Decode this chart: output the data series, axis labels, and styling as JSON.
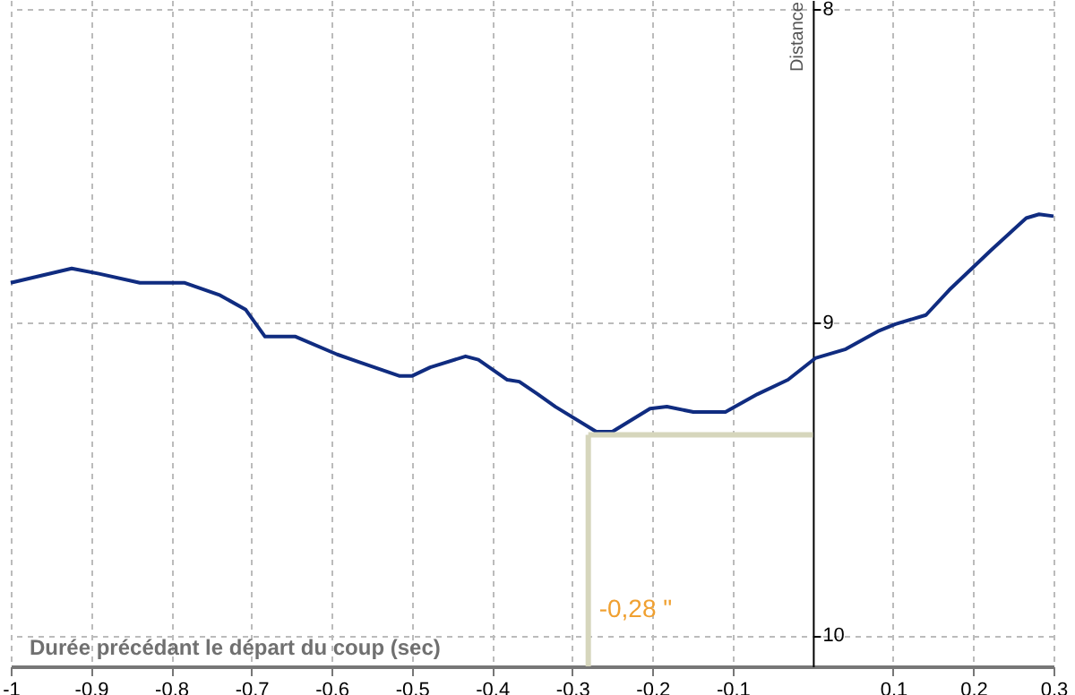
{
  "chart_data": {
    "type": "line",
    "xlabel": "Durée précédant le départ du coup (sec)",
    "ylabel": "Distance",
    "x": [
      -1,
      -0.924,
      -0.89,
      -0.839,
      -0.783,
      -0.739,
      -0.707,
      -0.683,
      -0.645,
      -0.593,
      -0.567,
      -0.515,
      -0.5,
      -0.477,
      -0.433,
      -0.417,
      -0.381,
      -0.366,
      -0.343,
      -0.321,
      -0.27,
      -0.25,
      -0.203,
      -0.182,
      -0.149,
      -0.109,
      -0.069,
      -0.031,
      0.003,
      0.041,
      0.081,
      0.103,
      0.141,
      0.17,
      0.222,
      0.266,
      0.282,
      0.3
    ],
    "series": [
      {
        "color": "#102c80",
        "values": [
          8.874,
          8.828,
          8.845,
          8.874,
          8.874,
          8.914,
          8.96,
          9.046,
          9.046,
          9.103,
          9.126,
          9.172,
          9.172,
          9.144,
          9.109,
          9.12,
          9.184,
          9.19,
          9.23,
          9.27,
          9.35,
          9.35,
          9.276,
          9.27,
          9.287,
          9.287,
          9.23,
          9.184,
          9.115,
          9.086,
          9.029,
          9.006,
          8.977,
          8.897,
          8.77,
          8.667,
          8.655,
          8.661
        ]
      }
    ],
    "xlim": [
      -1,
      0.3
    ],
    "xticks": [
      -1,
      -0.9,
      -0.8,
      -0.7,
      -0.6,
      -0.5,
      -0.4,
      -0.3,
      -0.2,
      -0.1,
      0.1,
      0.2,
      0.3
    ],
    "ylim": [
      10.1,
      7.97
    ],
    "yticks": [
      8,
      9,
      10
    ],
    "grid": true,
    "line_style": "solid",
    "ref_lines": [
      {
        "axis": "x",
        "value": -0.28,
        "label": "-0,28 \"",
        "color": "#d6d6bc"
      },
      {
        "axis": "y",
        "value": 9.36,
        "color": "#d6d6bc"
      }
    ]
  }
}
